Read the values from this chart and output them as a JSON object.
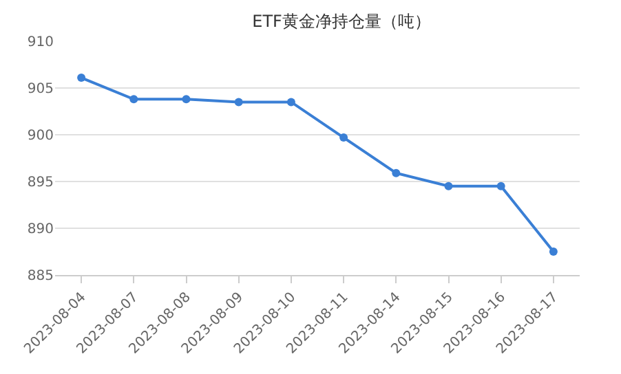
{
  "chart_data": {
    "type": "line",
    "title": "ETF黄金净持仓量（吨）",
    "categories": [
      "2023-08-04",
      "2023-08-07",
      "2023-08-08",
      "2023-08-09",
      "2023-08-10",
      "2023-08-11",
      "2023-08-14",
      "2023-08-15",
      "2023-08-16",
      "2023-08-17"
    ],
    "series": [
      {
        "color": "#3a7fd5",
        "values": [
          906.1,
          903.8,
          903.8,
          903.5,
          903.5,
          899.7,
          895.9,
          894.5,
          894.5,
          887.5
        ]
      }
    ],
    "ylim": [
      885,
      910
    ],
    "yticks": [
      885,
      890,
      895,
      900,
      905,
      910
    ],
    "grid": "y",
    "marker": "circle",
    "line_style": "solid"
  }
}
